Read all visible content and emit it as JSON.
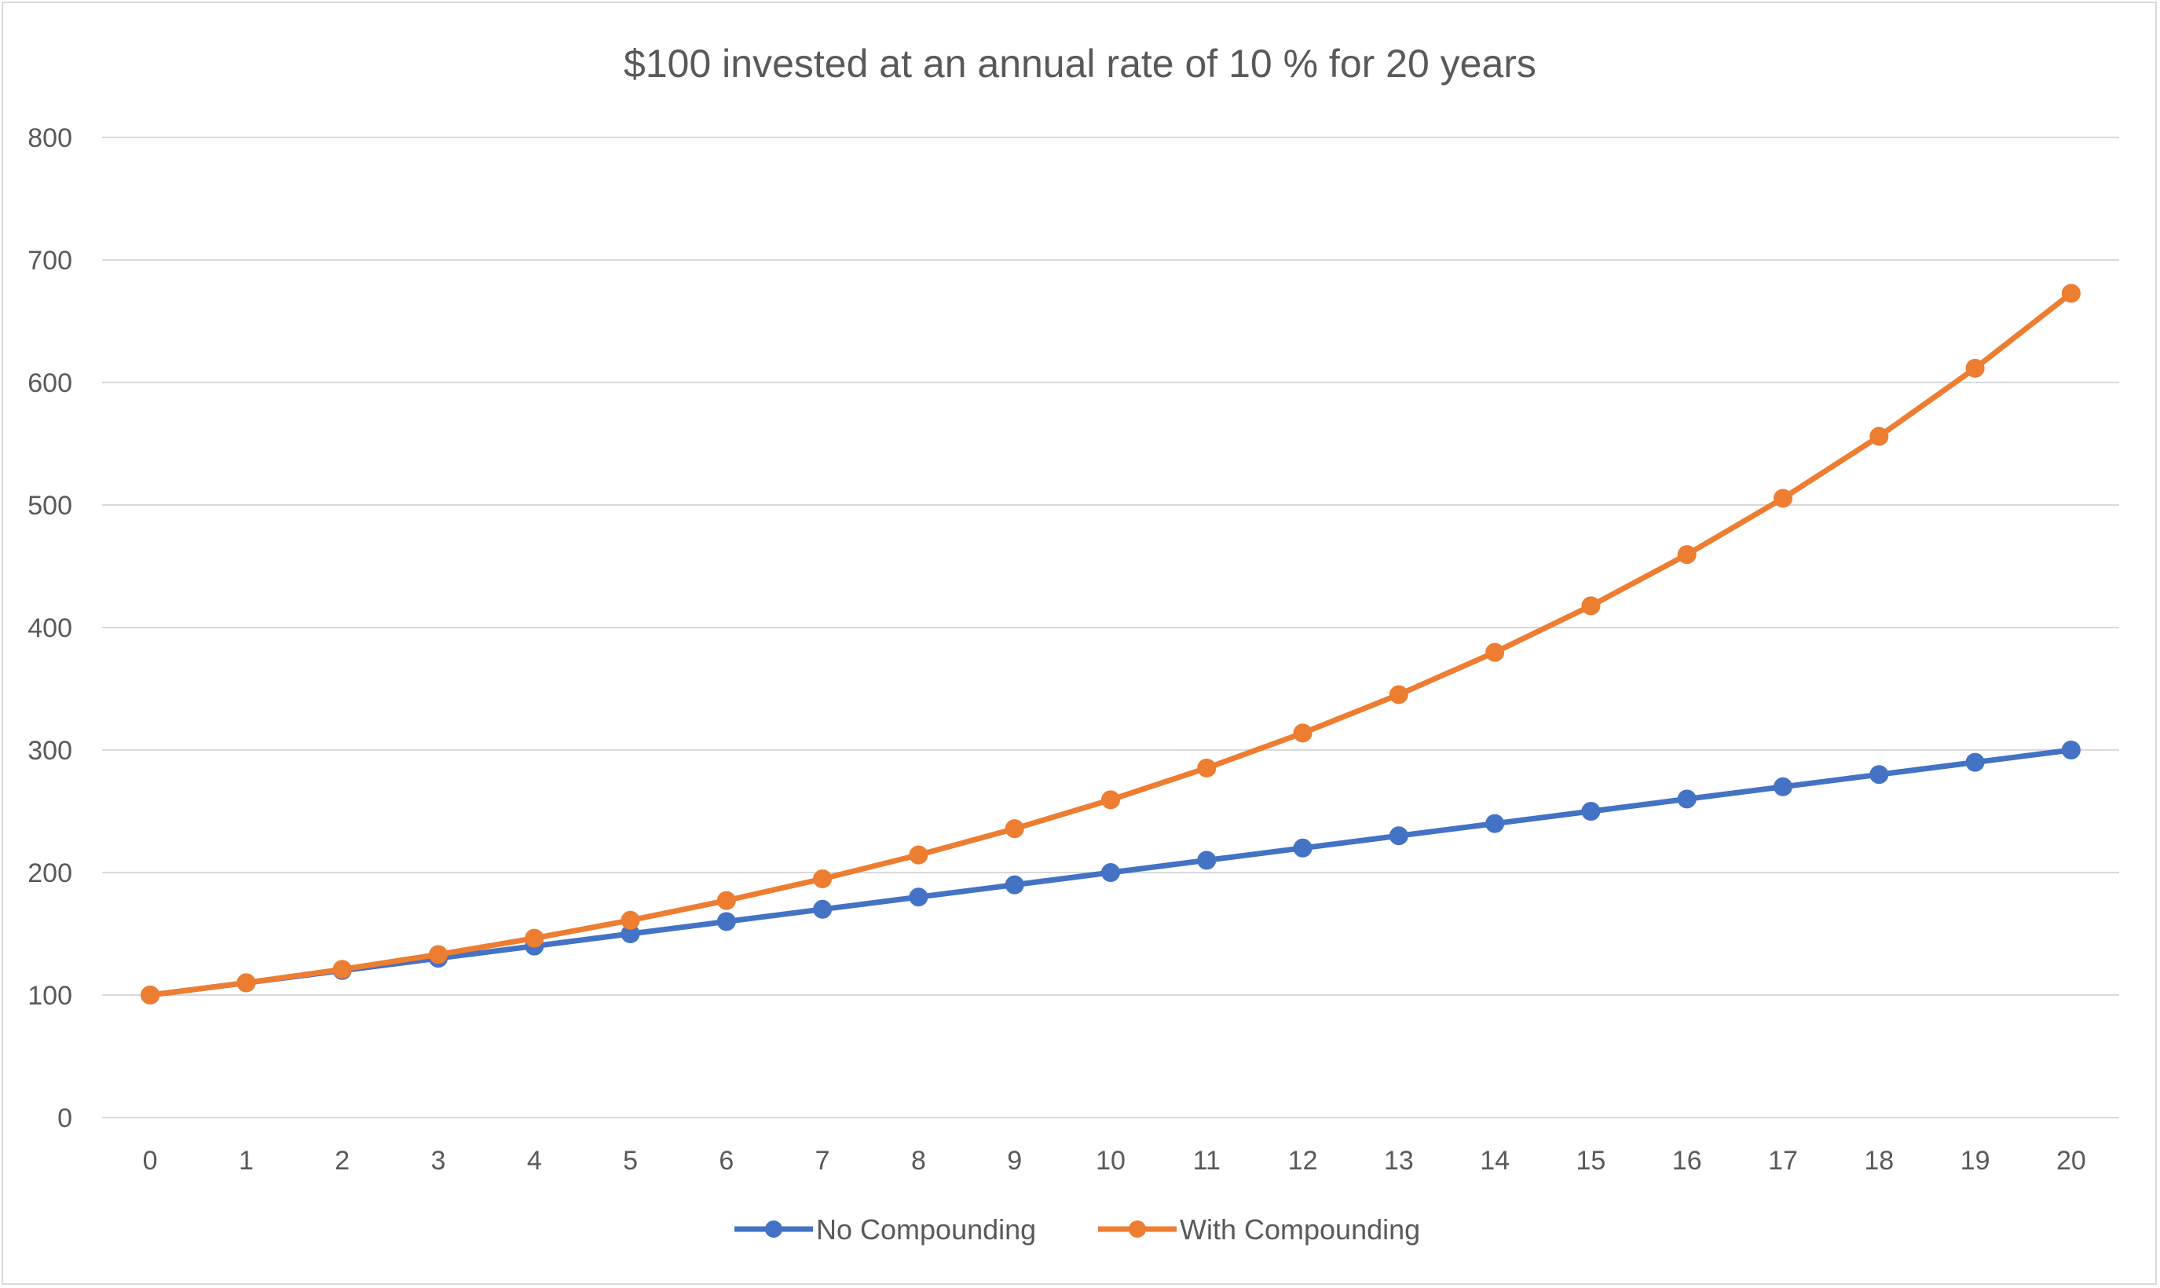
{
  "chart_data": {
    "type": "line",
    "title": "$100 invested at an annual rate of 10 % for 20 years",
    "xlabel": "",
    "ylabel": "",
    "categories": [
      "0",
      "1",
      "2",
      "3",
      "4",
      "5",
      "6",
      "7",
      "8",
      "9",
      "10",
      "11",
      "12",
      "13",
      "14",
      "15",
      "16",
      "17",
      "18",
      "19",
      "20"
    ],
    "ylim": [
      0,
      800
    ],
    "yticks": [
      "0",
      "100",
      "200",
      "300",
      "400",
      "500",
      "600",
      "700",
      "800"
    ],
    "grid": true,
    "legend_position": "bottom",
    "series": [
      {
        "name": "No Compounding",
        "color": "#4472c4",
        "values": [
          100,
          110,
          120,
          130,
          140,
          150,
          160,
          170,
          180,
          190,
          200,
          210,
          220,
          230,
          240,
          250,
          260,
          270,
          280,
          290,
          300
        ]
      },
      {
        "name": "With Compounding",
        "color": "#ed7d31",
        "values": [
          100,
          110,
          121,
          133.1,
          146.41,
          161.05,
          177.16,
          194.87,
          214.36,
          235.79,
          259.37,
          285.31,
          313.84,
          345.23,
          379.75,
          417.72,
          459.5,
          505.45,
          555.99,
          611.59,
          672.75
        ]
      }
    ]
  }
}
